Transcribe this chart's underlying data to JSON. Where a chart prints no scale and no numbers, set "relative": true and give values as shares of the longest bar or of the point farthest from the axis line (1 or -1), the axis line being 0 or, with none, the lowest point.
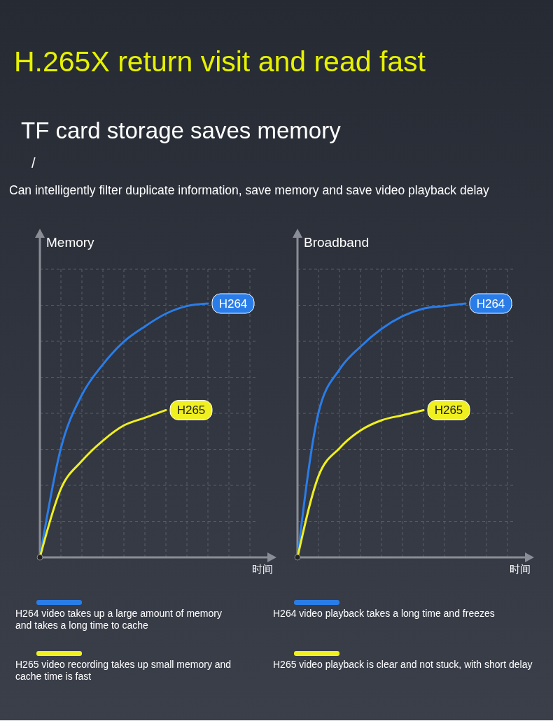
{
  "chart_data": [
    {
      "type": "line",
      "title": "H.265X return visit and read fast",
      "subtitle": "TF card storage saves memory",
      "ylabel": "Memory",
      "xlabel": "时间",
      "relative": true,
      "grid": true,
      "legend": false,
      "marker": "none",
      "line_style": "solid",
      "categories": [
        null,
        null,
        null,
        null,
        null,
        null,
        null,
        null,
        null,
        null,
        null
      ],
      "annotations": [
        "/",
        "Can intelligently filter duplicate information, save memory and save video playback delay",
        "H264 video takes up a large amount of memory and takes a long time to cache",
        "H265 video recording takes up small memory and cache time is fast"
      ],
      "series": [
        {
          "name": "H264",
          "color": "#2a7de8",
          "values": [
            0,
            0.43,
            0.64,
            0.76,
            0.85,
            0.91,
            0.96,
            0.99,
            1,
            null,
            null
          ]
        },
        {
          "name": "H265",
          "color": "#f0f020",
          "values": [
            0,
            0.27,
            0.38,
            0.46,
            0.52,
            0.55,
            0.58,
            null,
            null,
            null,
            null
          ]
        }
      ]
    },
    {
      "type": "line",
      "ylabel": "Broadband",
      "xlabel": "时间",
      "relative": true,
      "grid": true,
      "legend": false,
      "marker": "none",
      "line_style": "solid",
      "categories": [
        null,
        null,
        null,
        null,
        null,
        null,
        null,
        null,
        null,
        null,
        null
      ],
      "annotations": [
        "H264 video playback takes a long time and freezes",
        "H265 video playback is clear and not stuck, with short delay"
      ],
      "series": [
        {
          "name": "H264",
          "color": "#2a7de8",
          "values": [
            0,
            0.57,
            0.74,
            0.83,
            0.9,
            0.95,
            0.98,
            0.99,
            1,
            null,
            null
          ]
        },
        {
          "name": "H265",
          "color": "#f0f020",
          "values": [
            0,
            0.32,
            0.43,
            0.5,
            0.54,
            0.56,
            0.58,
            null,
            null,
            null,
            null
          ]
        }
      ]
    }
  ]
}
